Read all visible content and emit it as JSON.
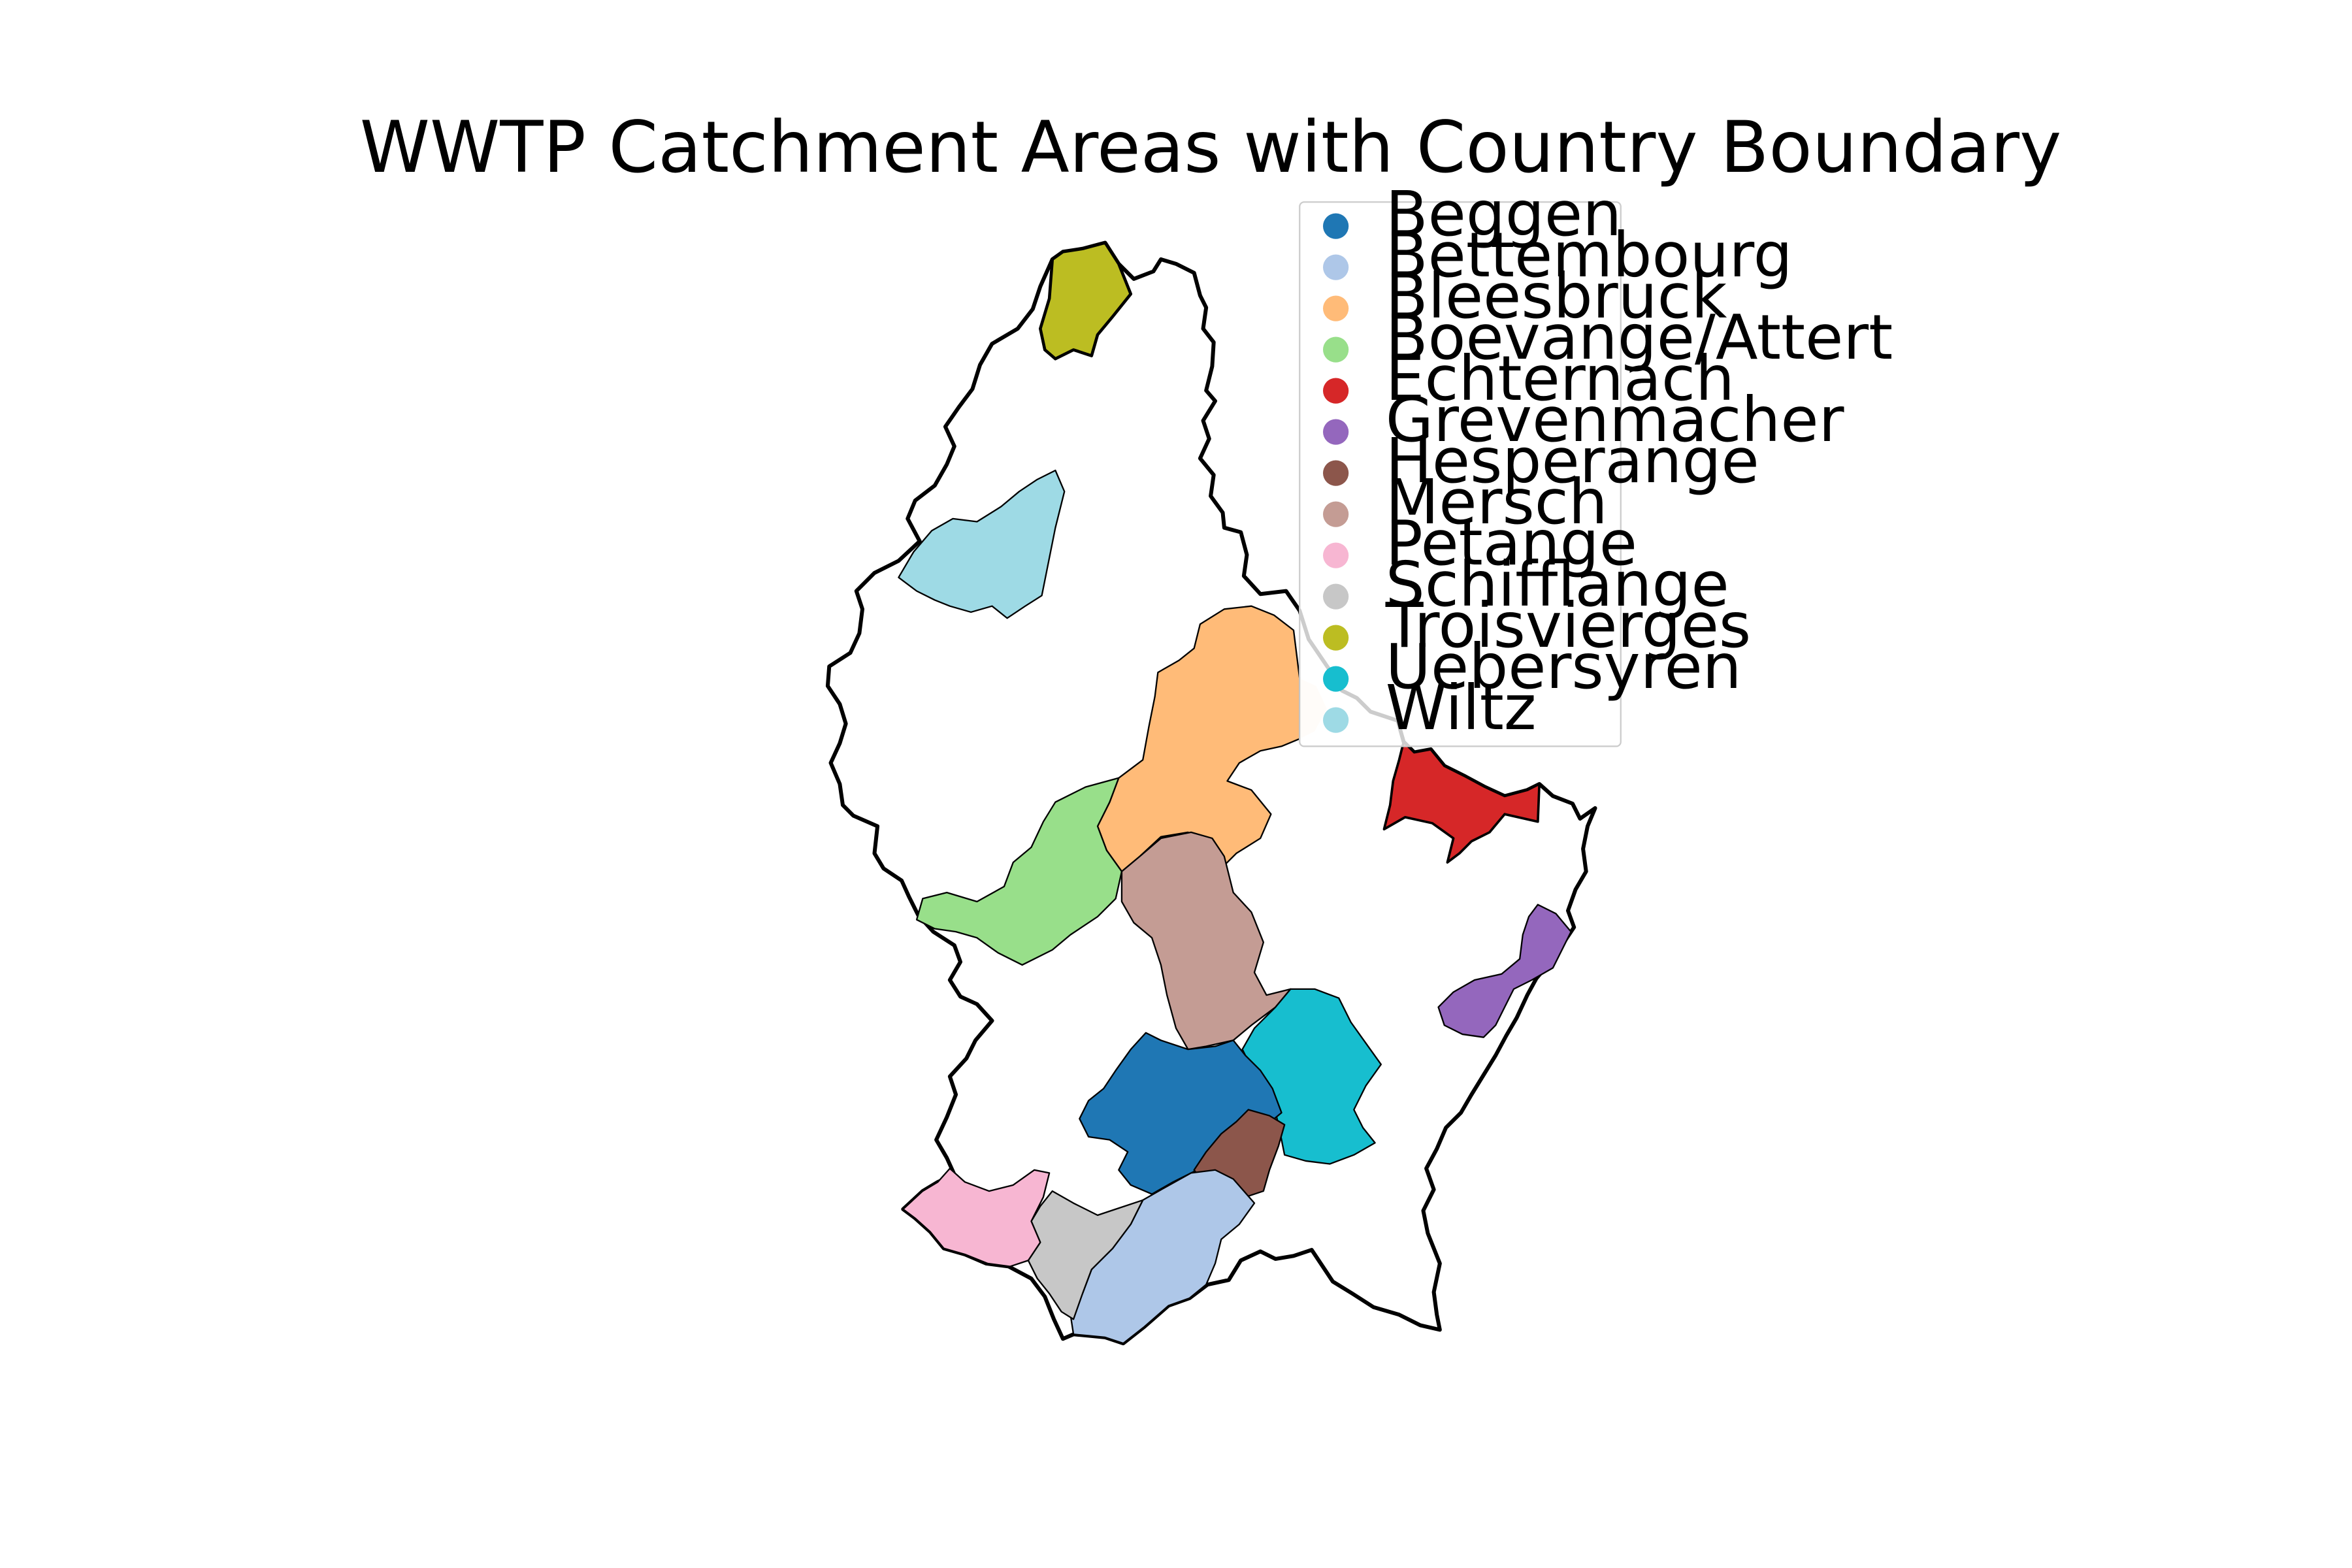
{
  "map": {
    "title": "WWTP Catchment Areas with Country Boundary",
    "country_boundary": {
      "color": "#000000"
    },
    "legend": {
      "placement": "upper-right",
      "items": [
        {
          "label": "Beggen",
          "color": "#1f77b4"
        },
        {
          "label": "Bettembourg",
          "color": "#aec7e8"
        },
        {
          "label": "Bleesbruck",
          "color": "#ffbb78"
        },
        {
          "label": "Boevange/Attert",
          "color": "#98df8a"
        },
        {
          "label": "Echternach",
          "color": "#d62728"
        },
        {
          "label": "Grevenmacher",
          "color": "#9467bd"
        },
        {
          "label": "Hesperange",
          "color": "#8c564b"
        },
        {
          "label": "Mersch",
          "color": "#c49c94"
        },
        {
          "label": "Petange",
          "color": "#f7b6d2"
        },
        {
          "label": "Schifflange",
          "color": "#c7c7c7"
        },
        {
          "label": "Troisvierges",
          "color": "#bcbd22"
        },
        {
          "label": "Uebersyren",
          "color": "#17becf"
        },
        {
          "label": "Wiltz",
          "color": "#9edae5"
        }
      ]
    }
  }
}
